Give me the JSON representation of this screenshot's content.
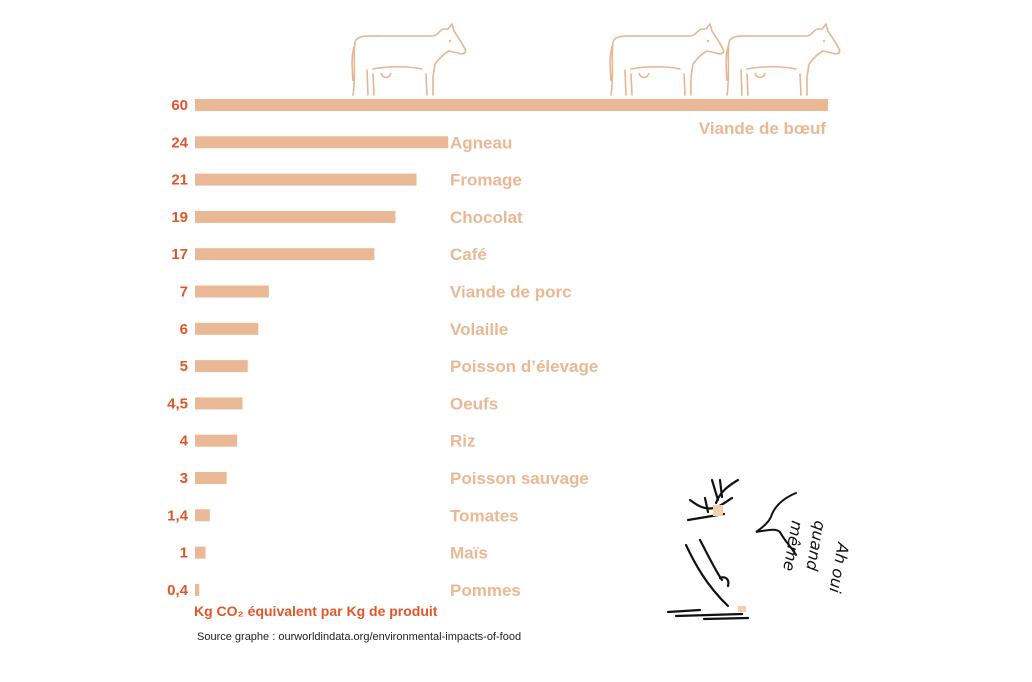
{
  "chart_data": {
    "type": "bar",
    "orientation": "horizontal",
    "categories": [
      "Viande de bœuf",
      "Agneau",
      "Fromage",
      "Chocolat",
      "Café",
      "Viande de porc",
      "Volaille",
      "Poisson d’élevage",
      "Oeufs",
      "Riz",
      "Poisson sauvage",
      "Tomates",
      "Maïs",
      "Pommes"
    ],
    "values": [
      60,
      24,
      21,
      19,
      17,
      7,
      6,
      5,
      4.5,
      4,
      3,
      1.4,
      1,
      0.4
    ],
    "value_labels": [
      "60",
      "24",
      "21",
      "19",
      "17",
      "7",
      "6",
      "5",
      "4,5",
      "4",
      "3",
      "1,4",
      "1",
      "0,4"
    ],
    "xlim": [
      0,
      60
    ],
    "xlabel": "Kg CO₂ équivalent par Kg de produit",
    "source": "Source graphe : ourworldindata.org/environmental-impacts-of-food",
    "grid": false,
    "colors": {
      "bar": "#e9b894",
      "value_text": "#e0562a",
      "category_text": "#e9b894",
      "cow_outline": "#e6b693"
    }
  },
  "illustration": {
    "cows": [
      "cow-icon",
      "cow-icon",
      "cow-icon"
    ],
    "character": "fox-character-drawing",
    "speech_bubble_text": [
      "Ah oui",
      "quand",
      "même"
    ]
  }
}
